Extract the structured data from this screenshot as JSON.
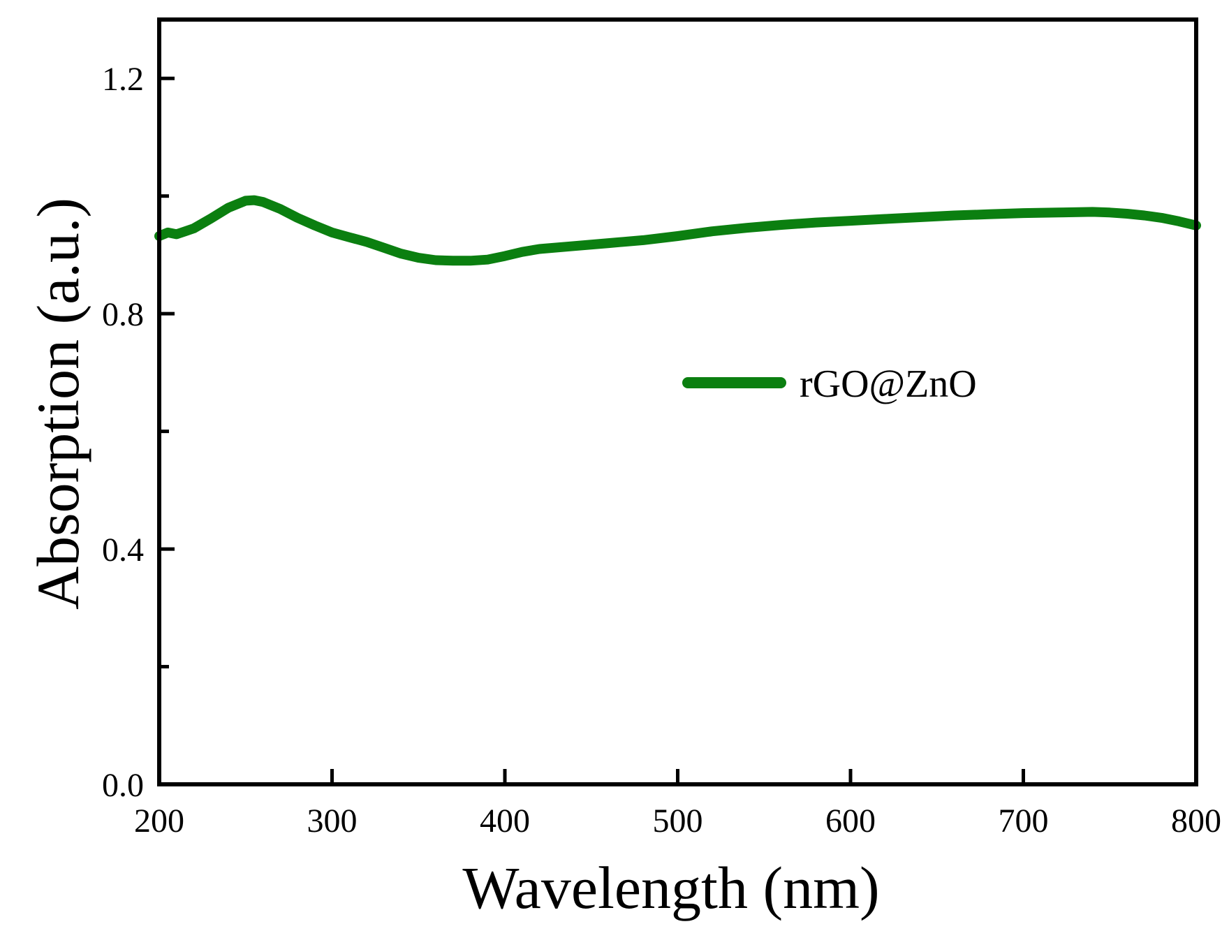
{
  "colors": {
    "series": "#0b7f10",
    "axis": "#000000",
    "background": "#ffffff"
  },
  "chart_data": {
    "type": "line",
    "title": "",
    "xlabel": "Wavelength (nm)",
    "ylabel": "Absorption (a.u.)",
    "xlim": [
      200,
      800
    ],
    "ylim": [
      0.0,
      1.3
    ],
    "x_ticks": [
      200,
      300,
      400,
      500,
      600,
      700,
      800
    ],
    "x_tick_labels": [
      "200",
      "300",
      "400",
      "500",
      "600",
      "700",
      "800"
    ],
    "y_major_ticks": [
      0.0,
      0.4,
      0.8,
      1.2
    ],
    "y_tick_labels": [
      "0.0",
      "0.4",
      "0.8",
      "1.2"
    ],
    "y_minor_ticks": [
      0.2,
      0.6,
      1.0
    ],
    "x_minor_ticks": [],
    "grid": false,
    "legend": {
      "position": "center-right",
      "entries": [
        "rGO@ZnO"
      ]
    },
    "series": [
      {
        "name": "rGO@ZnO",
        "x": [
          200,
          205,
          210,
          215,
          220,
          230,
          240,
          250,
          255,
          260,
          270,
          280,
          290,
          300,
          310,
          320,
          330,
          340,
          350,
          360,
          370,
          380,
          390,
          400,
          410,
          420,
          440,
          460,
          480,
          500,
          520,
          540,
          560,
          580,
          600,
          620,
          640,
          660,
          680,
          700,
          720,
          740,
          750,
          760,
          770,
          780,
          790,
          800
        ],
        "y": [
          0.932,
          0.938,
          0.935,
          0.94,
          0.945,
          0.962,
          0.98,
          0.992,
          0.993,
          0.99,
          0.978,
          0.963,
          0.95,
          0.938,
          0.93,
          0.922,
          0.912,
          0.902,
          0.895,
          0.891,
          0.89,
          0.89,
          0.892,
          0.898,
          0.905,
          0.91,
          0.915,
          0.92,
          0.925,
          0.932,
          0.94,
          0.946,
          0.951,
          0.955,
          0.958,
          0.961,
          0.964,
          0.967,
          0.969,
          0.971,
          0.972,
          0.973,
          0.972,
          0.97,
          0.967,
          0.963,
          0.957,
          0.95
        ]
      }
    ]
  }
}
